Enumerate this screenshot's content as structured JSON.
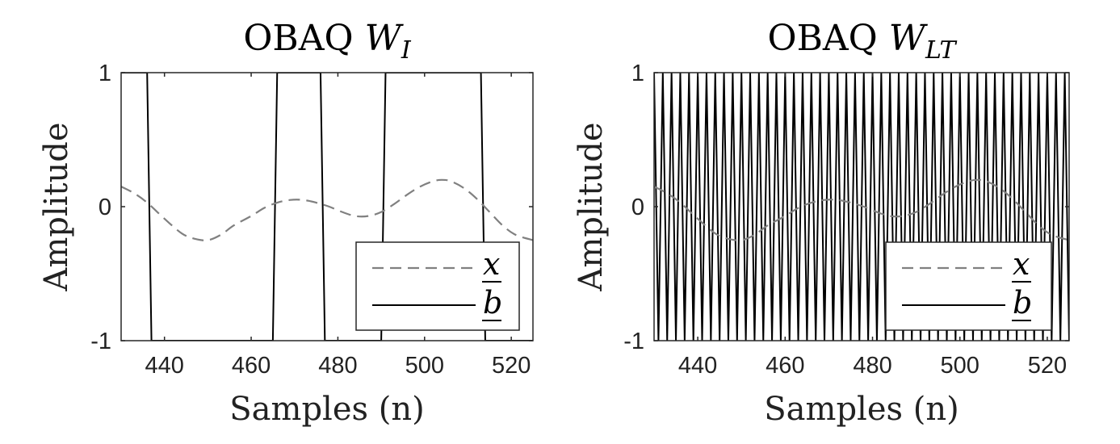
{
  "chart_data": [
    {
      "type": "line",
      "title": "OBAQ W",
      "title_subscript": "I",
      "xlabel": "Samples (n)",
      "ylabel": "Amplitude",
      "xlim": [
        430,
        525
      ],
      "ylim": [
        -1,
        1
      ],
      "xticks": [
        440,
        460,
        480,
        500,
        520
      ],
      "yticks": [
        -1,
        0,
        1
      ],
      "xtick_labels": [
        "440",
        "460",
        "480",
        "500",
        "520"
      ],
      "ytick_labels": [
        "-1",
        "0",
        "1"
      ],
      "legend_position": "bottom-right",
      "series": [
        {
          "name": "x",
          "style": "dashed",
          "color": "#808080",
          "x": [
            430,
            433,
            436,
            440,
            444,
            447,
            450,
            453,
            456,
            460,
            463,
            466,
            469,
            472,
            475,
            478,
            481,
            484,
            487,
            490,
            493,
            496,
            499,
            502,
            504,
            506,
            509,
            512,
            515,
            518,
            521,
            525
          ],
          "y": [
            0.15,
            0.1,
            0.03,
            -0.09,
            -0.2,
            -0.24,
            -0.25,
            -0.21,
            -0.14,
            -0.07,
            -0.01,
            0.03,
            0.05,
            0.05,
            0.03,
            0.0,
            -0.04,
            -0.07,
            -0.07,
            -0.04,
            0.02,
            0.09,
            0.15,
            0.19,
            0.2,
            0.19,
            0.14,
            0.06,
            -0.04,
            -0.14,
            -0.21,
            -0.25
          ]
        },
        {
          "name": "b",
          "style": "solid",
          "color": "#000000",
          "x": [
            436,
            437,
            465,
            466,
            476,
            477,
            490,
            491,
            513,
            514
          ],
          "y": [
            1,
            -1,
            -1,
            1,
            1,
            -1,
            -1,
            1,
            1,
            -1
          ],
          "start_value": 1,
          "end_value": -1
        }
      ]
    },
    {
      "type": "line",
      "title": "OBAQ W",
      "title_subscript": "LT",
      "xlabel": "Samples (n)",
      "ylabel": "Amplitude",
      "xlim": [
        430,
        525
      ],
      "ylim": [
        -1,
        1
      ],
      "xticks": [
        440,
        460,
        480,
        500,
        520
      ],
      "yticks": [
        -1,
        0,
        1
      ],
      "xtick_labels": [
        "440",
        "460",
        "480",
        "500",
        "520"
      ],
      "ytick_labels": [
        "-1",
        "0",
        "1"
      ],
      "legend_position": "bottom-right",
      "series": [
        {
          "name": "x",
          "style": "dashed",
          "color": "#808080",
          "x": [
            430,
            433,
            436,
            440,
            444,
            447,
            450,
            453,
            456,
            460,
            463,
            466,
            469,
            472,
            475,
            478,
            481,
            484,
            487,
            490,
            493,
            496,
            499,
            502,
            504,
            506,
            509,
            512,
            515,
            518,
            521,
            525
          ],
          "y": [
            0.15,
            0.1,
            0.03,
            -0.09,
            -0.2,
            -0.24,
            -0.25,
            -0.21,
            -0.14,
            -0.07,
            -0.01,
            0.03,
            0.05,
            0.05,
            0.03,
            0.0,
            -0.04,
            -0.07,
            -0.07,
            -0.04,
            0.02,
            0.09,
            0.15,
            0.19,
            0.2,
            0.19,
            0.14,
            0.06,
            -0.04,
            -0.14,
            -0.21,
            -0.25
          ]
        },
        {
          "name": "b",
          "style": "solid",
          "color": "#000000",
          "pattern": "alternating +1/-1 every sample",
          "x_start": 430,
          "x_end": 525,
          "start_value": 1
        }
      ]
    }
  ]
}
